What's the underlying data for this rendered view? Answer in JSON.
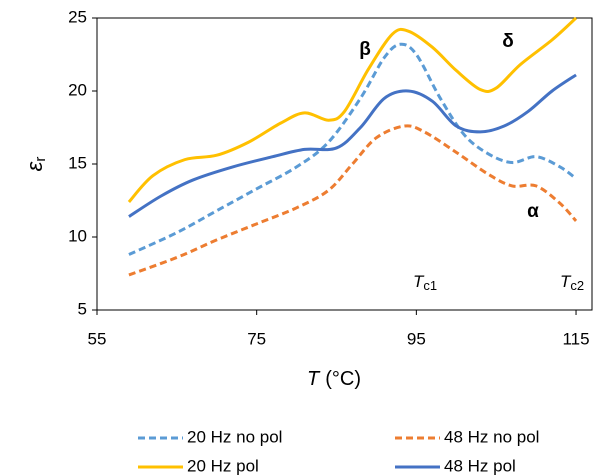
{
  "chart_data": {
    "type": "line",
    "ylabel": "ε",
    "ylabel_sub": "r",
    "xlabel": "T",
    "xlabel_unit": "(°C)",
    "xlim": [
      55,
      117
    ],
    "xticks": [
      55,
      75,
      95,
      115
    ],
    "ylim": [
      5,
      25
    ],
    "yticks": [
      5,
      10,
      15,
      20,
      25
    ],
    "annotations": [
      {
        "text": "β"
      },
      {
        "text": "δ"
      },
      {
        "text": "α"
      },
      {
        "text": "T",
        "sub": "c1"
      },
      {
        "text": "T",
        "sub": "c2"
      }
    ],
    "series": [
      {
        "name": "20 Hz no pol",
        "color": "#5b9bd5",
        "dash": true,
        "x": [
          59,
          65,
          70,
          75,
          80,
          84,
          88,
          91,
          93,
          95,
          98,
          101,
          104,
          107,
          110,
          113,
          115
        ],
        "values": [
          8.8,
          10.3,
          11.8,
          13.3,
          14.8,
          16.5,
          19.5,
          22.3,
          23.2,
          22.5,
          19.5,
          17.0,
          15.7,
          15.1,
          15.5,
          14.8,
          14.0
        ]
      },
      {
        "name": "48 Hz no pol",
        "color": "#ed7d31",
        "dash": true,
        "x": [
          59,
          65,
          70,
          75,
          80,
          84,
          87,
          90,
          93.5,
          96,
          100,
          104,
          107,
          110,
          113,
          115
        ],
        "values": [
          7.4,
          8.6,
          9.8,
          10.9,
          12.0,
          13.2,
          15.0,
          16.8,
          17.6,
          17.2,
          15.8,
          14.3,
          13.5,
          13.5,
          12.3,
          11.1
        ]
      },
      {
        "name": "20 Hz pol",
        "color": "#ffc000",
        "dash": false,
        "x": [
          59,
          62,
          66,
          70,
          74,
          78,
          81,
          84,
          86,
          89,
          92,
          94,
          97,
          100,
          103,
          105,
          108,
          112,
          115
        ],
        "values": [
          12.4,
          14.2,
          15.3,
          15.6,
          16.5,
          17.8,
          18.5,
          18.0,
          18.6,
          21.5,
          23.9,
          24.1,
          23.0,
          21.4,
          20.1,
          20.2,
          21.8,
          23.5,
          25
        ]
      },
      {
        "name": "48 Hz pol",
        "color": "#4472c4",
        "dash": false,
        "x": [
          59,
          63,
          67,
          72,
          77,
          81,
          85,
          88,
          91,
          94,
          97,
          100,
          103,
          106,
          109,
          112,
          115
        ],
        "values": [
          11.4,
          12.8,
          13.9,
          14.8,
          15.5,
          16.0,
          16.1,
          17.5,
          19.5,
          20.0,
          19.3,
          17.6,
          17.2,
          17.6,
          18.6,
          20.0,
          21.1
        ]
      }
    ]
  }
}
